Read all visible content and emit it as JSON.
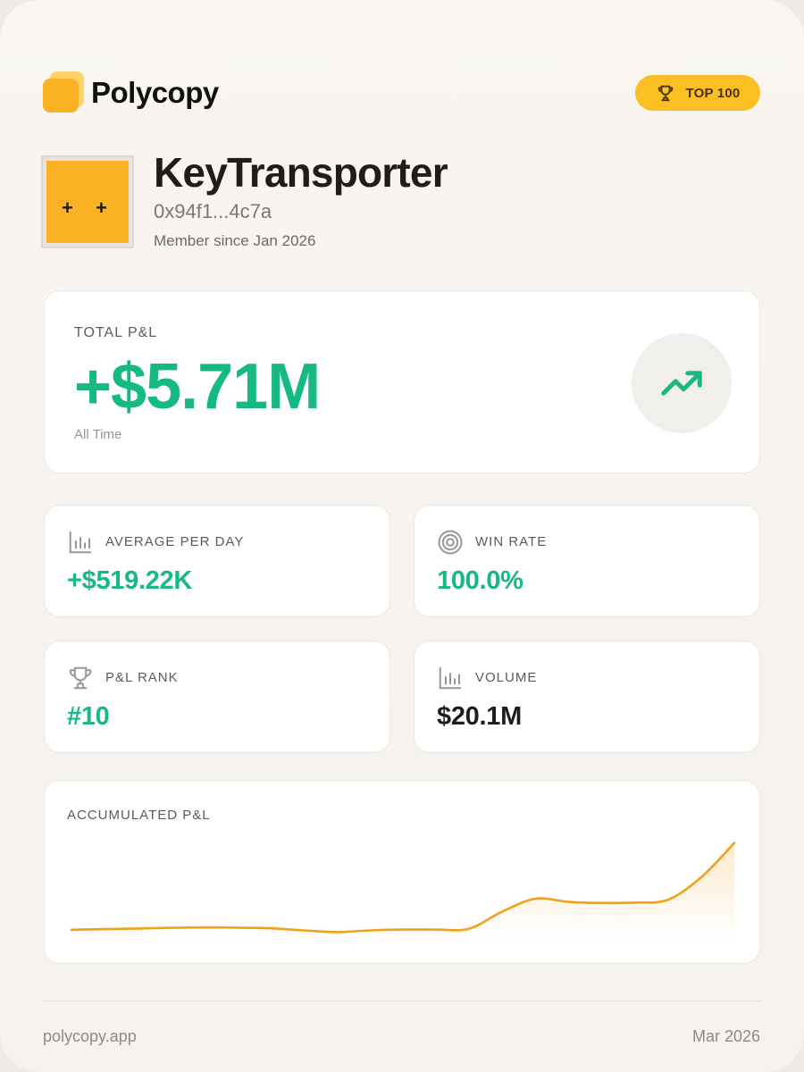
{
  "brand": {
    "name": "Polycopy",
    "icon": "polycopy-logo-icon"
  },
  "badge": {
    "label": "TOP 100",
    "icon": "trophy-icon"
  },
  "profile": {
    "username": "KeyTransporter",
    "address": "0x94f1...4c7a",
    "member_since": "Member since Jan 2026",
    "avatar_eyes": [
      "+",
      "+"
    ]
  },
  "total_pnl": {
    "label": "TOTAL P&L",
    "value": "+$5.71M",
    "period": "All Time",
    "icon": "trending-up-icon"
  },
  "stats": {
    "avg_per_day": {
      "label": "AVERAGE PER DAY",
      "value": "+$519.22K",
      "icon": "bar-chart-icon"
    },
    "win_rate": {
      "label": "WIN RATE",
      "value": "100.0%",
      "icon": "target-icon"
    },
    "pnl_rank": {
      "label": "P&L RANK",
      "value": "#10",
      "icon": "trophy-icon"
    },
    "volume": {
      "label": "VOLUME",
      "value": "$20.1M",
      "icon": "bar-chart-icon"
    }
  },
  "accumulated_pnl": {
    "label": "ACCUMULATED P&L",
    "line_color": "#f0a01a"
  },
  "chart_data": {
    "type": "area",
    "title": "ACCUMULATED P&L",
    "x": [
      0,
      1,
      2,
      3,
      4,
      5,
      6,
      7,
      8,
      9,
      10,
      11,
      12,
      13,
      14,
      15,
      16,
      17,
      18,
      19,
      20
    ],
    "values": [
      0.05,
      0.08,
      0.11,
      0.14,
      0.16,
      0.15,
      0.12,
      0.02,
      -0.06,
      0.02,
      0.06,
      0.06,
      0.1,
      0.9,
      1.5,
      1.35,
      1.3,
      1.32,
      1.45,
      2.5,
      4.1
    ],
    "ylim": [
      -0.5,
      4.5
    ],
    "grid": false,
    "legend": "none"
  },
  "footer": {
    "site": "polycopy.app",
    "date": "Mar 2026"
  },
  "colors": {
    "accent": "#fbbf24",
    "positive": "#16b981",
    "brand_orange": "#fbb124"
  }
}
